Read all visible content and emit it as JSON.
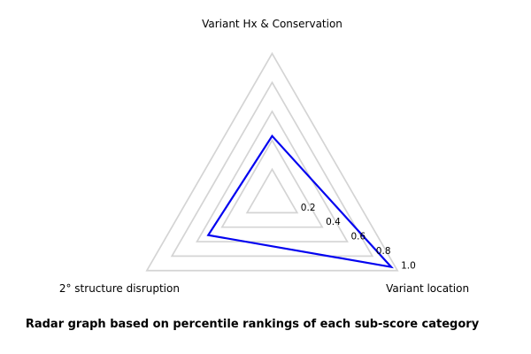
{
  "chart_data": {
    "type": "radar",
    "categories": [
      "Variant Hx & Conservation",
      "Variant location",
      "2° structure disruption"
    ],
    "values": [
      0.43,
      0.95,
      0.51
    ],
    "series": [
      {
        "name": "percentile",
        "values": [
          0.43,
          0.95,
          0.51
        ]
      }
    ],
    "ticks": [
      0.2,
      0.4,
      0.6,
      0.8,
      1.0
    ],
    "tick_labels": [
      "0.2",
      "0.4",
      "0.6",
      "0.8",
      "1.0"
    ],
    "rlim": [
      0,
      1.0
    ],
    "grid": true,
    "grid_shape": "triangle-rings",
    "legend": null,
    "caption": "Radar graph based on percentile rankings of each sub-score category",
    "colors": {
      "series": "#0202f0",
      "grid": "#d4d4d4",
      "text": "#000000",
      "background": "#ffffff"
    }
  }
}
